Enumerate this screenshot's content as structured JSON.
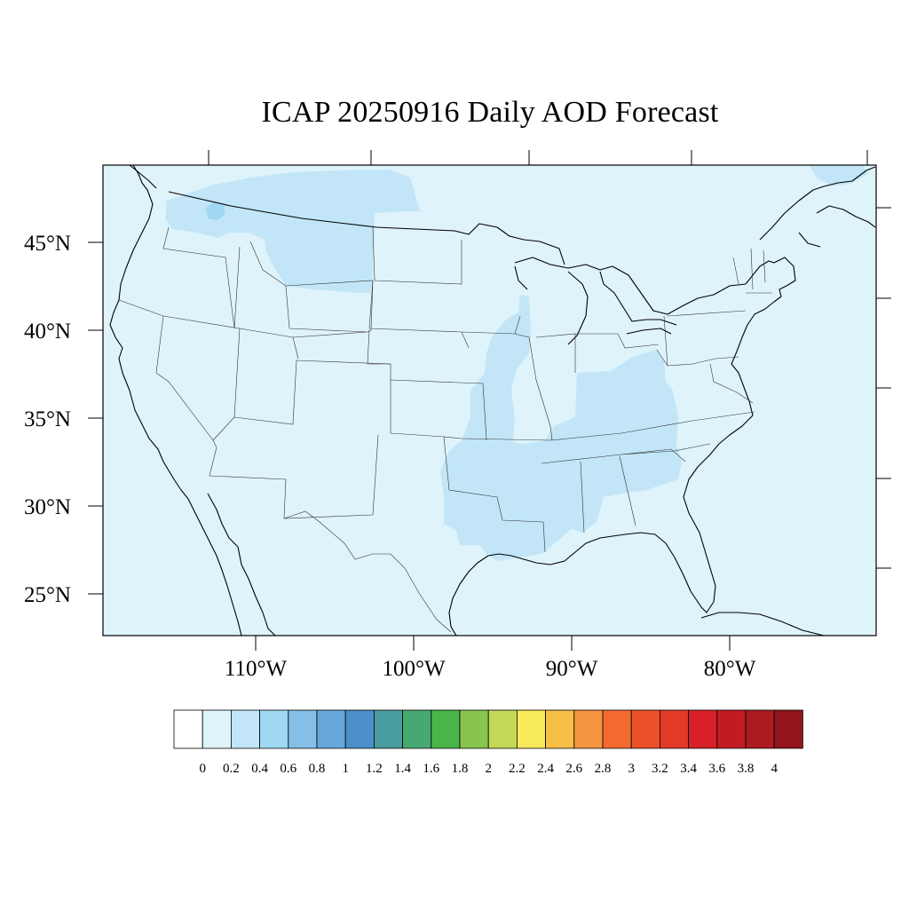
{
  "title": "ICAP 20250916 Daily AOD Forecast",
  "map": {
    "projection": "lambert-conformal",
    "region": "contiguous-us",
    "background_color": "#dff3fb",
    "lat_labels": [
      "45°N",
      "40°N",
      "35°N",
      "30°N",
      "25°N"
    ],
    "lon_labels": [
      "110°W",
      "100°W",
      "90°W",
      "80°W"
    ]
  },
  "aod_regions": [
    {
      "region": "pacific-northwest-montana",
      "aod_range": "0.2-0.4",
      "color": "#c2e6f8"
    },
    {
      "region": "washington-north",
      "aod_range": "0.4-0.6",
      "color": "#a1d8f4"
    },
    {
      "region": "mississippi-valley-lower",
      "aod_range": "0.2-0.4",
      "color": "#c2e6f8"
    },
    {
      "region": "ohio-valley-tennessee-southeast",
      "aod_range": "0.2-0.4",
      "color": "#c2e6f8"
    },
    {
      "region": "quebec-north",
      "aod_range": "0.2-0.4",
      "color": "#c2e6f8"
    }
  ],
  "colorbar": {
    "labels": [
      "0",
      "0.2",
      "0.4",
      "0.6",
      "0.8",
      "1",
      "1.2",
      "1.4",
      "1.6",
      "1.8",
      "2",
      "2.2",
      "2.4",
      "2.6",
      "2.8",
      "3",
      "3.2",
      "3.4",
      "3.6",
      "3.8",
      "4"
    ],
    "colors": [
      "#ffffff",
      "#dff3fb",
      "#c2e6f8",
      "#a1d8f4",
      "#83bfe7",
      "#66a8db",
      "#4b8fcb",
      "#4a9d9f",
      "#47a972",
      "#4ab54b",
      "#87c54c",
      "#c4d957",
      "#f7e85c",
      "#f8bf47",
      "#f69540",
      "#f26a30",
      "#ea5129",
      "#e23a26",
      "#d82028",
      "#c31b24",
      "#ab1b20",
      "#92151c"
    ]
  }
}
